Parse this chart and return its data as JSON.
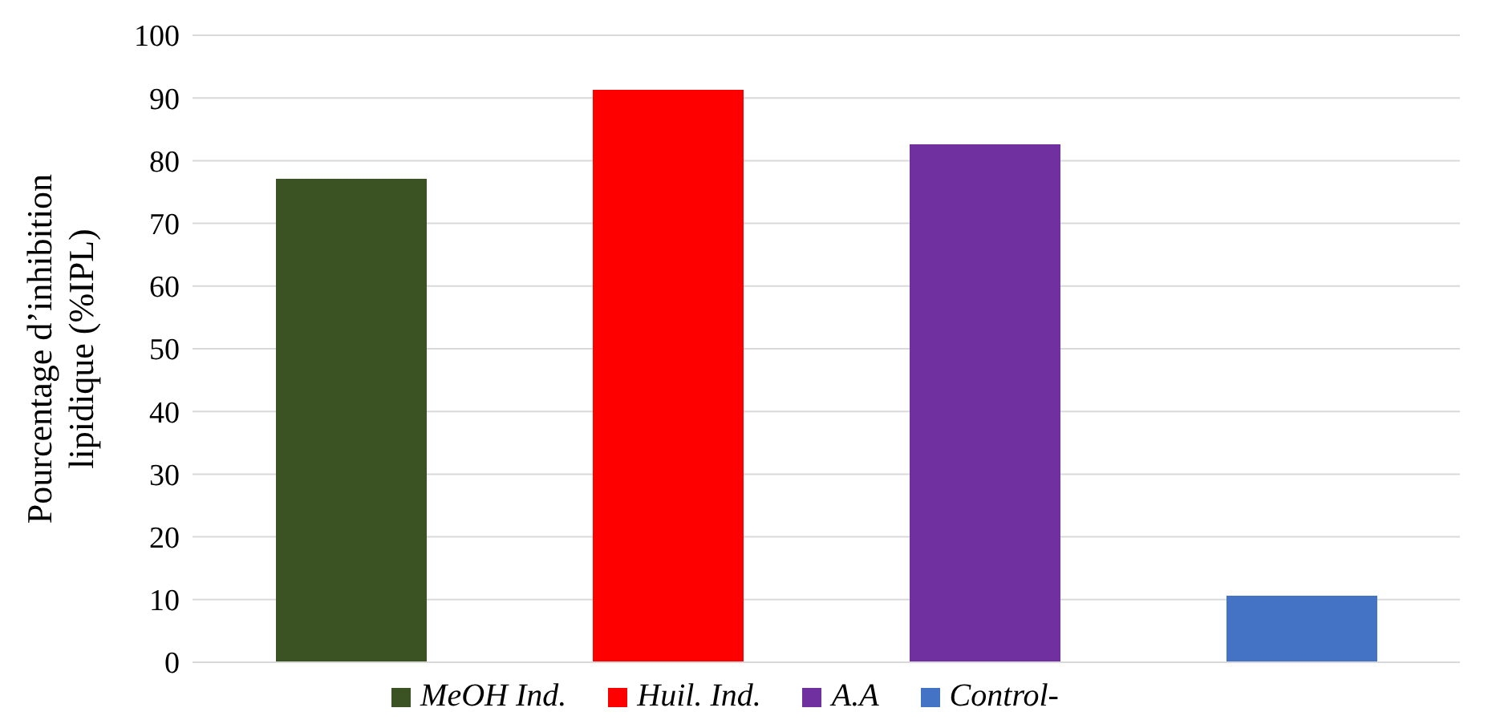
{
  "chart_data": {
    "type": "bar",
    "ylabel": "Pourcentage d’inhibition lipidique (%IPL)",
    "categories": [
      null,
      null,
      null,
      null
    ],
    "series": [
      {
        "name": "MeOH Ind.",
        "color": "#3b5323",
        "values": [
          77.1,
          null,
          null,
          null
        ]
      },
      {
        "name": "Huil. Ind.",
        "color": "#ff0000",
        "values": [
          null,
          91.3,
          null,
          null
        ]
      },
      {
        "name": "A.A",
        "color": "#7030a0",
        "values": [
          null,
          null,
          82.6,
          null
        ]
      },
      {
        "name": "Control-",
        "color": "#4472c4",
        "values": [
          null,
          null,
          null,
          10.6
        ]
      }
    ],
    "ylim": [
      0,
      100
    ],
    "yticks": [
      0,
      10,
      20,
      30,
      40,
      50,
      60,
      70,
      80,
      90,
      100
    ],
    "grid": "y",
    "legend": "bottom"
  }
}
